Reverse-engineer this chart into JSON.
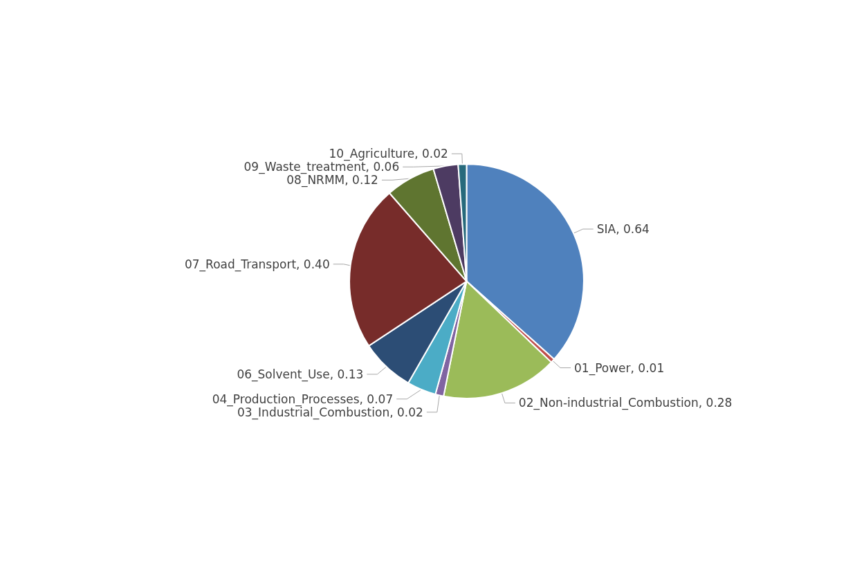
{
  "chart_data": {
    "type": "pie",
    "categories": [
      "SIA",
      "01_Power",
      "02_Non-industrial_Combustion",
      "03_Industrial_Combustion",
      "04_Production_Processes",
      "06_Solvent_Use",
      "07_Road_Transport",
      "08_NRMM",
      "09_Waste_treatment",
      "10_Agriculture"
    ],
    "values": [
      0.64,
      0.01,
      0.28,
      0.02,
      0.07,
      0.13,
      0.4,
      0.12,
      0.06,
      0.02
    ],
    "value_labels": [
      "0.64",
      "0.01",
      "0.28",
      "0.02",
      "0.07",
      "0.13",
      "0.40",
      "0.12",
      "0.06",
      "0.02"
    ],
    "colors": [
      "#4f81bd",
      "#c0504d",
      "#9bbb59",
      "#8064a2",
      "#4bacc6",
      "#2c4d75",
      "#772c2a",
      "#5f7530",
      "#4d3b62",
      "#276a7c"
    ],
    "legend": false
  }
}
